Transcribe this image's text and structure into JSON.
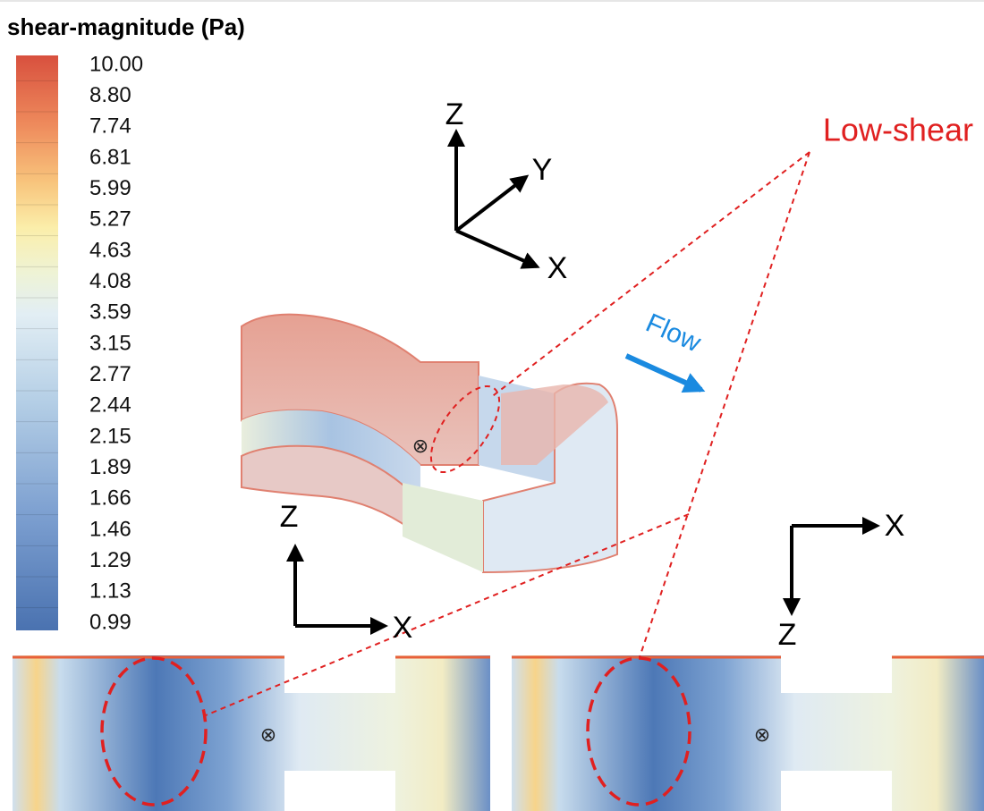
{
  "legend": {
    "title": "shear-magnitude (Pa)",
    "ticks": [
      "10.00",
      "8.80",
      "7.74",
      "6.81",
      "5.99",
      "5.27",
      "4.63",
      "4.08",
      "3.59",
      "3.15",
      "2.77",
      "2.44",
      "2.15",
      "1.89",
      "1.66",
      "1.46",
      "1.29",
      "1.13",
      "0.99"
    ]
  },
  "axes_top": {
    "z": "Z",
    "y": "Y",
    "x": "X"
  },
  "axes_front": {
    "z": "Z",
    "x": "X"
  },
  "axes_plan": {
    "x": "X",
    "z": "Z"
  },
  "annotations": {
    "low_shear": "Low-shear",
    "flow": "Flow"
  },
  "markers": [
    "⊗",
    "⊗",
    "⊗"
  ]
}
